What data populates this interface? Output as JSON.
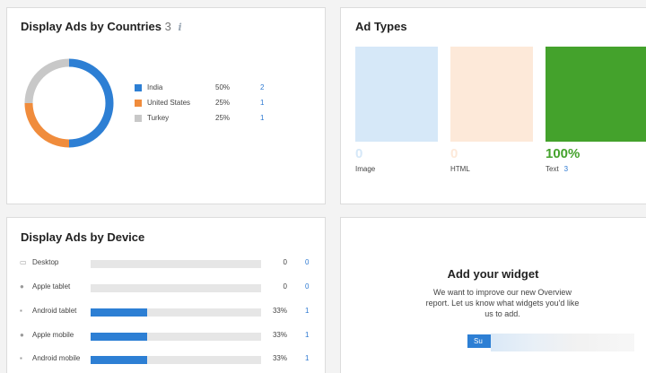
{
  "countries": {
    "title": "Display Ads by Countries",
    "count": "3",
    "info_icon": "info-icon",
    "items": [
      {
        "label": "India",
        "pct": "50%",
        "count": "2",
        "share": 0.5,
        "color": "#2d7fd4"
      },
      {
        "label": "United States",
        "pct": "25%",
        "count": "1",
        "share": 0.25,
        "color": "#f08c3c"
      },
      {
        "label": "Turkey",
        "pct": "25%",
        "count": "1",
        "share": 0.25,
        "color": "#c8c8c8"
      }
    ]
  },
  "ad_types": {
    "title": "Ad Types",
    "items": [
      {
        "value": "0",
        "label": "Image",
        "count": "",
        "color": "#d6e8f8",
        "value_color": "#d6e8f8"
      },
      {
        "value": "0",
        "label": "HTML",
        "count": "",
        "color": "#fde9d9",
        "value_color": "#fde9d9"
      },
      {
        "value": "100%",
        "label": "Text",
        "count": "3",
        "color": "#44a22c",
        "value_color": "#44a22c"
      }
    ]
  },
  "device": {
    "title": "Display Ads by Device",
    "items": [
      {
        "label": "Desktop",
        "pct": "0",
        "count": "0",
        "share": 0,
        "icon": "monitor-icon"
      },
      {
        "label": "Apple tablet",
        "pct": "0",
        "count": "0",
        "share": 0,
        "icon": "apple-icon"
      },
      {
        "label": "Android tablet",
        "pct": "33%",
        "count": "1",
        "share": 0.33,
        "icon": "android-icon"
      },
      {
        "label": "Apple mobile",
        "pct": "33%",
        "count": "1",
        "share": 0.33,
        "icon": "apple-icon"
      },
      {
        "label": "Android mobile",
        "pct": "33%",
        "count": "1",
        "share": 0.33,
        "icon": "android-icon"
      }
    ]
  },
  "widget": {
    "title": "Add your widget",
    "text": "We want to improve our new Overview report. Let us know what widgets you'd like us to add.",
    "button_label": "Su"
  }
}
